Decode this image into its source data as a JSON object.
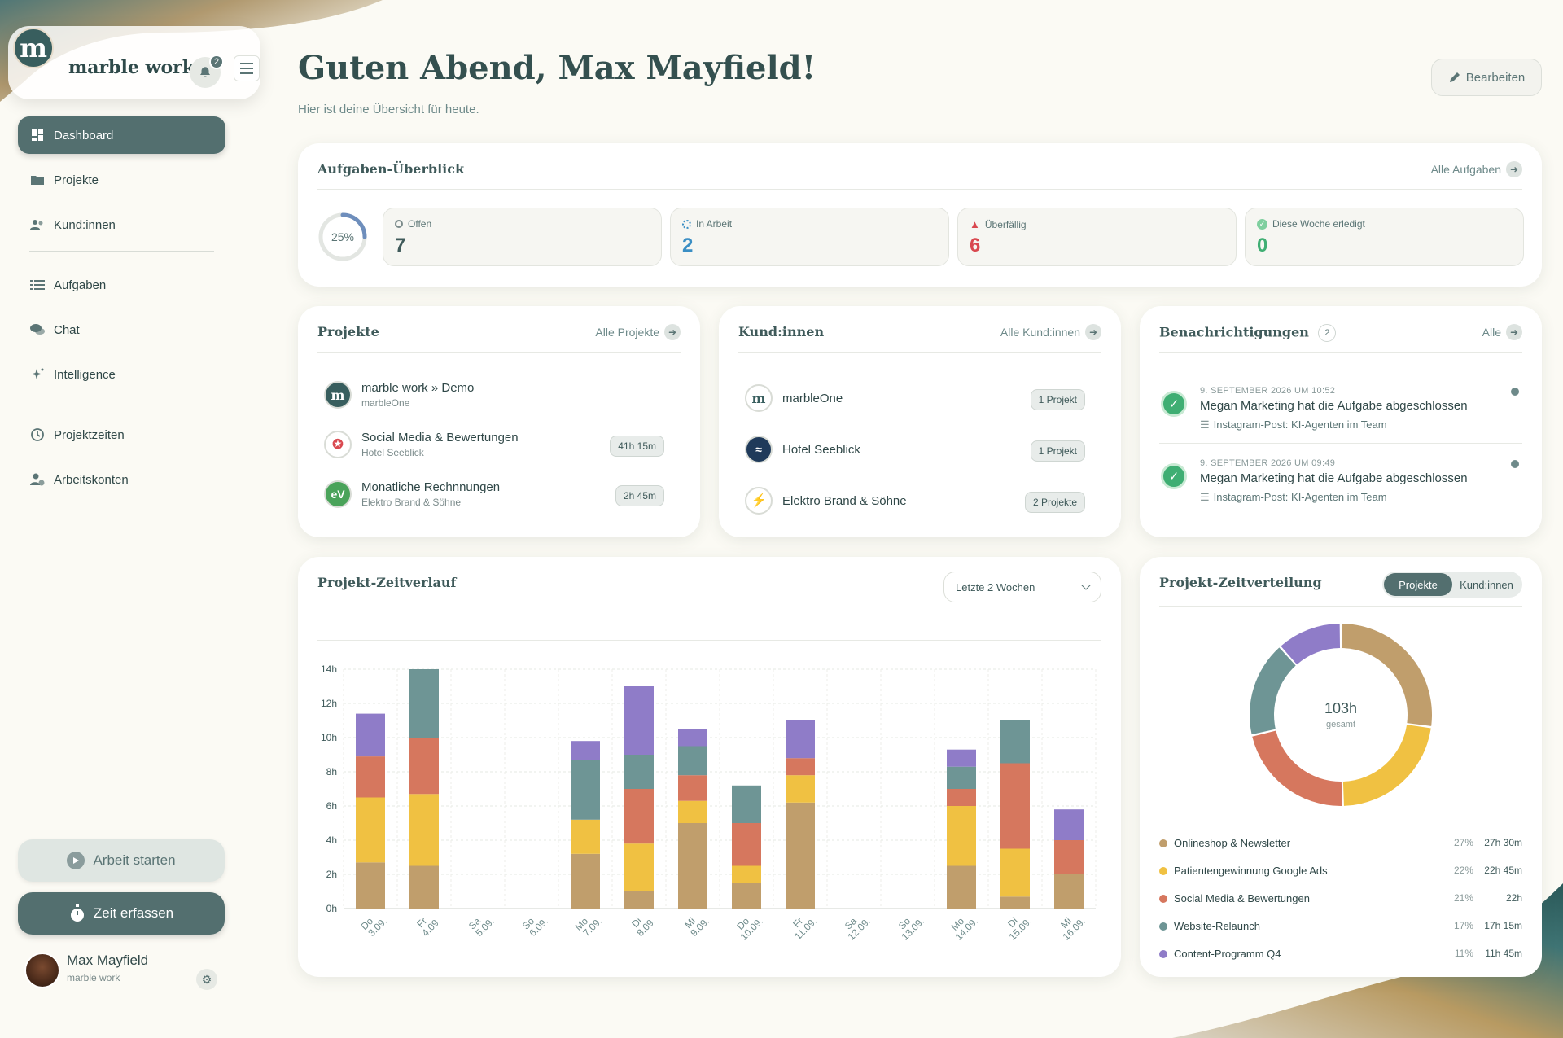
{
  "app": {
    "name": "marble work",
    "logo_letter": "m",
    "notification_count": "2"
  },
  "nav": {
    "items": [
      {
        "label": "Dashboard",
        "icon": "dashboard-icon",
        "active": true
      },
      {
        "label": "Projekte",
        "icon": "folder-icon"
      },
      {
        "label": "Kund:innen",
        "icon": "people-icon"
      },
      {
        "label": "Aufgaben",
        "icon": "list-icon"
      },
      {
        "label": "Chat",
        "icon": "chat-icon"
      },
      {
        "label": "Intelligence",
        "icon": "sparkle-icon"
      },
      {
        "label": "Projektzeiten",
        "icon": "clock-icon"
      },
      {
        "label": "Arbeitskonten",
        "icon": "account-icon"
      }
    ]
  },
  "actions": {
    "start_label": "Arbeit starten",
    "time_label": "Zeit erfassen"
  },
  "user": {
    "name": "Max Mayfield",
    "org": "marble work"
  },
  "header": {
    "greeting": "Guten Abend, Max Mayfield!",
    "subtitle": "Hier ist deine Übersicht für heute.",
    "edit_label": "Bearbeiten"
  },
  "tasks": {
    "title": "Aufgaben-Überblick",
    "link": "Alle Aufgaben",
    "progress_label": "25%",
    "progress_fraction": 0.25,
    "stats": [
      {
        "label": "Offen",
        "value": "7",
        "color": "#3f5a5a"
      },
      {
        "label": "In Arbeit",
        "value": "2",
        "color": "#3a8ec4"
      },
      {
        "label": "Überfällig",
        "value": "6",
        "color": "#d9484f"
      },
      {
        "label": "Diese Woche erledigt",
        "value": "0",
        "color": "#3fae73"
      }
    ]
  },
  "projects": {
    "title": "Projekte",
    "link": "Alle Projekte",
    "items": [
      {
        "name": "marble work » Demo",
        "client": "marbleOne",
        "time": ""
      },
      {
        "name": "Social Media & Bewertungen",
        "client": "Hotel Seeblick",
        "time": "41h 15m"
      },
      {
        "name": "Monatliche Rechnnungen",
        "client": "Elektro Brand & Söhne",
        "time": "2h 45m"
      }
    ]
  },
  "clients": {
    "title": "Kund:innen",
    "link": "Alle Kund:innen",
    "items": [
      {
        "name": "marbleOne",
        "count": "1 Projekt"
      },
      {
        "name": "Hotel Seeblick",
        "count": "1 Projekt"
      },
      {
        "name": "Elektro Brand & Söhne",
        "count": "2 Projekte"
      }
    ]
  },
  "notifications": {
    "title": "Benachrichtigungen",
    "count": "2",
    "link": "Alle",
    "items": [
      {
        "date": "9. SEPTEMBER 2026 UM 10:52",
        "text": "Megan Marketing hat die Aufgabe abgeschlossen",
        "task": "Instagram-Post: KI-Agenten im Team"
      },
      {
        "date": "9. SEPTEMBER 2026 UM 09:49",
        "text": "Megan Marketing hat die Aufgabe abgeschlossen",
        "task": "Instagram-Post: KI-Agenten im Team"
      }
    ]
  },
  "timeline": {
    "title": "Projekt-Zeitverlauf",
    "range_label": "Letzte 2 Wochen"
  },
  "distribution": {
    "title": "Projekt-Zeitverteilung",
    "toggle": [
      "Projekte",
      "Kund:innen"
    ],
    "total": "103h",
    "total_label": "gesamt",
    "items": [
      {
        "name": "Onlineshop & Newsletter",
        "pct": "27%",
        "hours": "27h 30m",
        "value": 27.5,
        "color": "#c09e6c"
      },
      {
        "name": "Patientengewinnung Google Ads",
        "pct": "22%",
        "hours": "22h 45m",
        "value": 22.75,
        "color": "#f0c142"
      },
      {
        "name": "Social Media & Bewertungen",
        "pct": "21%",
        "hours": "22h",
        "value": 22,
        "color": "#d6775e"
      },
      {
        "name": "Website-Relaunch",
        "pct": "17%",
        "hours": "17h 15m",
        "value": 17.25,
        "color": "#6e9595"
      },
      {
        "name": "Content-Programm Q4",
        "pct": "11%",
        "hours": "11h 45m",
        "value": 11.75,
        "color": "#8f7cc8"
      }
    ]
  },
  "chart_data": {
    "type": "bar",
    "stacked": true,
    "categories": [
      "Do 3.09.",
      "Fr 4.09.",
      "Sa 5.09.",
      "So 6.09.",
      "Mo 7.09.",
      "Di 8.09.",
      "Mi 9.09.",
      "Do 10.09.",
      "Fr 11.09.",
      "Sa 12.09.",
      "So 13.09.",
      "Mo 14.09.",
      "Di 15.09.",
      "Mi 16.09."
    ],
    "yticks": [
      "0h",
      "2h",
      "4h",
      "6h",
      "8h",
      "10h",
      "12h",
      "14h"
    ],
    "ylim": [
      0,
      14
    ],
    "series": [
      {
        "name": "Onlineshop & Newsletter",
        "color": "#c09e6c",
        "values": [
          2.7,
          2.5,
          0,
          0,
          3.2,
          1.0,
          5.0,
          1.5,
          6.2,
          0,
          0,
          2.5,
          0.7,
          2.0
        ]
      },
      {
        "name": "Patientengewinnung Google Ads",
        "color": "#f0c142",
        "values": [
          3.8,
          4.2,
          0,
          0,
          2.0,
          2.8,
          1.3,
          1.0,
          1.6,
          0,
          0,
          3.5,
          2.8,
          0
        ]
      },
      {
        "name": "Social Media & Bewertungen",
        "color": "#d6775e",
        "values": [
          2.4,
          3.3,
          0,
          0,
          0,
          3.2,
          1.5,
          2.5,
          1.0,
          0,
          0,
          1.0,
          5.0,
          2.0
        ]
      },
      {
        "name": "Website-Relaunch",
        "color": "#6e9595",
        "values": [
          0,
          4.0,
          0,
          0,
          3.5,
          2.0,
          1.7,
          2.2,
          0,
          0,
          0,
          1.3,
          2.5,
          0
        ]
      },
      {
        "name": "Content-Programm Q4",
        "color": "#8f7cc8",
        "values": [
          2.5,
          0,
          0,
          0,
          1.1,
          4.0,
          1.0,
          0,
          2.2,
          0,
          0,
          1.0,
          0,
          1.8
        ]
      }
    ]
  }
}
